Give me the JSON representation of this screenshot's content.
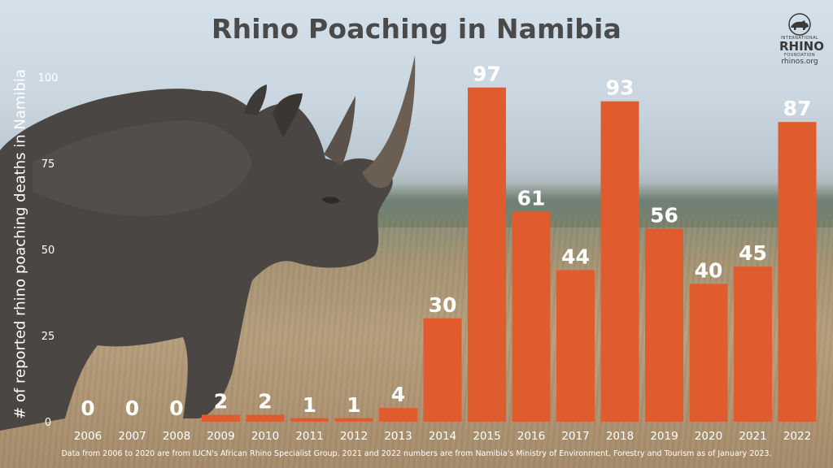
{
  "title": "Rhino Poaching in Namibia",
  "logo": {
    "line1": "INTERNATIONAL",
    "name": "RHINO",
    "line2": "FOUNDATION",
    "url": "rhinos.org",
    "icon": "rhino-icon"
  },
  "footnote": "Data from 2006 to 2020 are from IUCN's African Rhino Specialist Group. 2021 and 2022 numbers are from Namibia's Ministry of Environment, Forestry and Tourism as of January 2023.",
  "background_image": "black-rhino-photo",
  "colors": {
    "bar": "#e05c2e",
    "text": "#ffffff",
    "title": "#4a4a4a"
  },
  "chart_data": {
    "type": "bar",
    "title": "Rhino Poaching in Namibia",
    "xlabel": "",
    "ylabel": "# of reported rhino poaching deaths in Namibia",
    "ylim": [
      0,
      100
    ],
    "yticks": [
      0,
      25,
      50,
      75,
      100
    ],
    "grid": false,
    "categories": [
      "2006",
      "2007",
      "2008",
      "2009",
      "2010",
      "2011",
      "2012",
      "2013",
      "2014",
      "2015",
      "2016",
      "2017",
      "2018",
      "2019",
      "2020",
      "2021",
      "2022"
    ],
    "values": [
      0,
      0,
      0,
      2,
      2,
      1,
      1,
      4,
      30,
      97,
      61,
      44,
      93,
      56,
      40,
      45,
      87
    ]
  }
}
